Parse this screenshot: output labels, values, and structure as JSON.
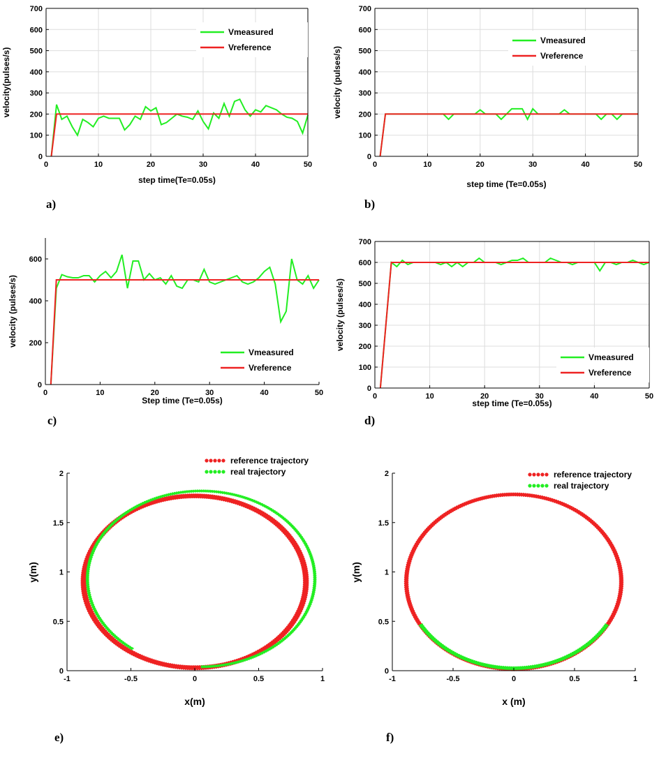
{
  "colors": {
    "measured": "#22ee22",
    "reference": "#ee2222",
    "grid": "#dddddd",
    "axis": "#000000"
  },
  "chart_data": [
    {
      "id": "a",
      "type": "line",
      "panel_label": "a)",
      "xlabel": "step time(Te=0.05s)",
      "ylabel": "velocity(pulses/s)",
      "xlim": [
        0,
        50
      ],
      "ylim": [
        0,
        700
      ],
      "xticks": [
        0,
        10,
        20,
        30,
        40,
        50
      ],
      "yticks": [
        0,
        100,
        200,
        300,
        400,
        500,
        600,
        700
      ],
      "grid": true,
      "legend_position": "top-right",
      "series": [
        {
          "name": "Vmeasured",
          "color": "#22ee22",
          "x": [
            1,
            2,
            3,
            4,
            5,
            6,
            7,
            8,
            9,
            10,
            11,
            12,
            13,
            14,
            15,
            16,
            17,
            18,
            19,
            20,
            21,
            22,
            23,
            24,
            25,
            26,
            27,
            28,
            29,
            30,
            31,
            32,
            33,
            34,
            35,
            36,
            37,
            38,
            39,
            40,
            41,
            42,
            43,
            44,
            45,
            46,
            47,
            48,
            49,
            50
          ],
          "y": [
            0,
            245,
            175,
            190,
            140,
            100,
            175,
            160,
            140,
            180,
            190,
            180,
            180,
            180,
            125,
            150,
            190,
            175,
            235,
            215,
            230,
            150,
            160,
            180,
            200,
            190,
            185,
            175,
            215,
            165,
            130,
            205,
            180,
            250,
            190,
            260,
            270,
            220,
            190,
            220,
            210,
            240,
            230,
            220,
            200,
            185,
            180,
            165,
            110,
            195
          ]
        },
        {
          "name": "Vreference",
          "color": "#ee2222",
          "x": [
            1,
            2,
            3,
            4,
            5,
            6,
            7,
            8,
            9,
            10,
            11,
            12,
            13,
            14,
            15,
            16,
            17,
            18,
            19,
            20,
            21,
            22,
            23,
            24,
            25,
            26,
            27,
            28,
            29,
            30,
            31,
            32,
            33,
            34,
            35,
            36,
            37,
            38,
            39,
            40,
            41,
            42,
            43,
            44,
            45,
            46,
            47,
            48,
            49,
            50
          ],
          "y": [
            0,
            200,
            200,
            200,
            200,
            200,
            200,
            200,
            200,
            200,
            200,
            200,
            200,
            200,
            200,
            200,
            200,
            200,
            200,
            200,
            200,
            200,
            200,
            200,
            200,
            200,
            200,
            200,
            200,
            200,
            200,
            200,
            200,
            200,
            200,
            200,
            200,
            200,
            200,
            200,
            200,
            200,
            200,
            200,
            200,
            200,
            200,
            200,
            200,
            200
          ]
        }
      ]
    },
    {
      "id": "b",
      "type": "line",
      "panel_label": "b)",
      "xlabel": "step time (Te=0.05s)",
      "ylabel": "velocity (pulses/s)",
      "xlim": [
        0,
        50
      ],
      "ylim": [
        0,
        700
      ],
      "xticks": [
        0,
        10,
        20,
        30,
        40,
        50
      ],
      "yticks": [
        0,
        100,
        200,
        300,
        400,
        500,
        600,
        700
      ],
      "grid": true,
      "legend_position": "top-right",
      "series": [
        {
          "name": "Vmeasured",
          "color": "#22ee22",
          "x": [
            1,
            2,
            3,
            4,
            5,
            6,
            7,
            8,
            9,
            10,
            11,
            12,
            13,
            14,
            15,
            16,
            17,
            18,
            19,
            20,
            21,
            22,
            23,
            24,
            25,
            26,
            27,
            28,
            29,
            30,
            31,
            32,
            33,
            34,
            35,
            36,
            37,
            38,
            39,
            40,
            41,
            42,
            43,
            44,
            45,
            46,
            47,
            48,
            49,
            50
          ],
          "y": [
            0,
            200,
            200,
            200,
            200,
            200,
            200,
            200,
            200,
            200,
            200,
            200,
            200,
            175,
            200,
            200,
            200,
            200,
            200,
            220,
            200,
            200,
            200,
            175,
            200,
            225,
            225,
            225,
            175,
            225,
            200,
            200,
            200,
            200,
            200,
            220,
            200,
            200,
            200,
            200,
            200,
            200,
            175,
            200,
            200,
            175,
            200,
            200,
            200,
            200
          ]
        },
        {
          "name": "Vreference",
          "color": "#ee2222",
          "x": [
            1,
            2,
            3,
            4,
            5,
            6,
            7,
            8,
            9,
            10,
            11,
            12,
            13,
            14,
            15,
            16,
            17,
            18,
            19,
            20,
            21,
            22,
            23,
            24,
            25,
            26,
            27,
            28,
            29,
            30,
            31,
            32,
            33,
            34,
            35,
            36,
            37,
            38,
            39,
            40,
            41,
            42,
            43,
            44,
            45,
            46,
            47,
            48,
            49,
            50
          ],
          "y": [
            0,
            200,
            200,
            200,
            200,
            200,
            200,
            200,
            200,
            200,
            200,
            200,
            200,
            200,
            200,
            200,
            200,
            200,
            200,
            200,
            200,
            200,
            200,
            200,
            200,
            200,
            200,
            200,
            200,
            200,
            200,
            200,
            200,
            200,
            200,
            200,
            200,
            200,
            200,
            200,
            200,
            200,
            200,
            200,
            200,
            200,
            200,
            200,
            200,
            200
          ]
        }
      ]
    },
    {
      "id": "c",
      "type": "line",
      "panel_label": "c)",
      "xlabel": "Step time (Te=0.05s)",
      "ylabel": "velocity (pulses/s)",
      "xlim": [
        0,
        50
      ],
      "ylim": [
        0,
        700
      ],
      "xticks": [
        0,
        10,
        20,
        30,
        40,
        50
      ],
      "yticks": [
        0,
        200,
        400,
        600
      ],
      "grid": false,
      "legend_position": "bottom-right",
      "series": [
        {
          "name": "Vmeasured",
          "color": "#22ee22",
          "x": [
            1,
            2,
            3,
            4,
            5,
            6,
            7,
            8,
            9,
            10,
            11,
            12,
            13,
            14,
            15,
            16,
            17,
            18,
            19,
            20,
            21,
            22,
            23,
            24,
            25,
            26,
            27,
            28,
            29,
            30,
            31,
            32,
            33,
            34,
            35,
            36,
            37,
            38,
            39,
            40,
            41,
            42,
            43,
            44,
            45,
            46,
            47,
            48,
            49,
            50
          ],
          "y": [
            0,
            460,
            525,
            515,
            510,
            510,
            520,
            520,
            490,
            520,
            540,
            510,
            540,
            620,
            460,
            590,
            590,
            500,
            530,
            500,
            510,
            480,
            520,
            470,
            460,
            500,
            500,
            490,
            550,
            490,
            480,
            490,
            500,
            510,
            520,
            490,
            480,
            490,
            510,
            540,
            560,
            480,
            300,
            350,
            600,
            500,
            480,
            520,
            460,
            500
          ]
        },
        {
          "name": "Vreference",
          "color": "#ee2222",
          "x": [
            1,
            2,
            3,
            4,
            5,
            6,
            7,
            8,
            9,
            10,
            11,
            12,
            13,
            14,
            15,
            16,
            17,
            18,
            19,
            20,
            21,
            22,
            23,
            24,
            25,
            26,
            27,
            28,
            29,
            30,
            31,
            32,
            33,
            34,
            35,
            36,
            37,
            38,
            39,
            40,
            41,
            42,
            43,
            44,
            45,
            46,
            47,
            48,
            49,
            50
          ],
          "y": [
            0,
            500,
            500,
            500,
            500,
            500,
            500,
            500,
            500,
            500,
            500,
            500,
            500,
            500,
            500,
            500,
            500,
            500,
            500,
            500,
            500,
            500,
            500,
            500,
            500,
            500,
            500,
            500,
            500,
            500,
            500,
            500,
            500,
            500,
            500,
            500,
            500,
            500,
            500,
            500,
            500,
            500,
            500,
            500,
            500,
            500,
            500,
            500,
            500,
            500
          ]
        }
      ]
    },
    {
      "id": "d",
      "type": "line",
      "panel_label": "d)",
      "xlabel": "step time (Te=0.05s)",
      "ylabel": "velocity (pulses/s)",
      "xlim": [
        0,
        50
      ],
      "ylim": [
        0,
        700
      ],
      "xticks": [
        0,
        10,
        20,
        30,
        40,
        50
      ],
      "yticks": [
        0,
        100,
        200,
        300,
        400,
        500,
        600,
        700
      ],
      "grid": true,
      "legend_position": "bottom-right",
      "series": [
        {
          "name": "Vmeasured",
          "color": "#22ee22",
          "x": [
            1,
            2,
            3,
            4,
            5,
            6,
            7,
            8,
            9,
            10,
            11,
            12,
            13,
            14,
            15,
            16,
            17,
            18,
            19,
            20,
            21,
            22,
            23,
            24,
            25,
            26,
            27,
            28,
            29,
            30,
            31,
            32,
            33,
            34,
            35,
            36,
            37,
            38,
            39,
            40,
            41,
            42,
            43,
            44,
            45,
            46,
            47,
            48,
            49,
            50
          ],
          "y": [
            0,
            300,
            600,
            580,
            610,
            590,
            600,
            600,
            600,
            600,
            600,
            590,
            600,
            580,
            600,
            580,
            600,
            600,
            620,
            600,
            600,
            600,
            590,
            600,
            610,
            610,
            620,
            600,
            600,
            600,
            600,
            620,
            610,
            600,
            600,
            590,
            600,
            600,
            600,
            600,
            560,
            600,
            600,
            590,
            600,
            600,
            610,
            600,
            590,
            600
          ]
        },
        {
          "name": "Vreference",
          "color": "#ee2222",
          "x": [
            1,
            2,
            3,
            4,
            5,
            6,
            7,
            8,
            9,
            10,
            11,
            12,
            13,
            14,
            15,
            16,
            17,
            18,
            19,
            20,
            21,
            22,
            23,
            24,
            25,
            26,
            27,
            28,
            29,
            30,
            31,
            32,
            33,
            34,
            35,
            36,
            37,
            38,
            39,
            40,
            41,
            42,
            43,
            44,
            45,
            46,
            47,
            48,
            49,
            50
          ],
          "y": [
            0,
            300,
            600,
            600,
            600,
            600,
            600,
            600,
            600,
            600,
            600,
            600,
            600,
            600,
            600,
            600,
            600,
            600,
            600,
            600,
            600,
            600,
            600,
            600,
            600,
            600,
            600,
            600,
            600,
            600,
            600,
            600,
            600,
            600,
            600,
            600,
            600,
            600,
            600,
            600,
            600,
            600,
            600,
            600,
            600,
            600,
            600,
            600,
            600,
            600
          ]
        }
      ]
    },
    {
      "id": "e",
      "type": "scatter",
      "panel_label": "e)",
      "xlabel": "x(m)",
      "ylabel": "y(m)",
      "xlim": [
        -1,
        1
      ],
      "ylim": [
        0,
        2
      ],
      "xticks": [
        -1,
        -0.5,
        0,
        0.5,
        1
      ],
      "yticks": [
        0,
        0.5,
        1,
        1.5,
        2
      ],
      "xticklabels": [
        "-1",
        "-0.5",
        "0",
        "0.5",
        "1"
      ],
      "yticklabels": [
        "0",
        "0.5",
        "1",
        "1.5",
        "2"
      ],
      "grid": false,
      "legend_position": "top-right",
      "series": [
        {
          "name": "reference trajectory",
          "color": "#ee2222",
          "shape": "circle",
          "center": [
            0,
            0.9
          ],
          "radius": [
            0.85,
            0.89
          ],
          "theta_range_deg": [
            -90,
            270
          ]
        },
        {
          "name": "real  trajectory",
          "color": "#22ee22",
          "shape": "circle",
          "center": [
            0.05,
            0.93
          ],
          "radius": [
            0.88,
            0.9
          ],
          "theta_range_deg": [
            -90,
            233
          ]
        }
      ]
    },
    {
      "id": "f",
      "type": "scatter",
      "panel_label": "f)",
      "xlabel": "x (m)",
      "ylabel": "y(m)",
      "xlim": [
        -1,
        1
      ],
      "ylim": [
        0,
        2
      ],
      "xticks": [
        -1,
        -0.5,
        0,
        0.5,
        1
      ],
      "yticks": [
        0,
        0.5,
        1,
        1.5,
        2
      ],
      "xticklabels": [
        "-1",
        "-0.5",
        "0",
        "0.5",
        "1"
      ],
      "yticklabels": [
        "0",
        "0.5",
        "1",
        "1.5",
        "2"
      ],
      "grid": false,
      "legend_position": "top-right",
      "series": [
        {
          "name": "reference trajectory",
          "color": "#ee2222",
          "shape": "circle",
          "center": [
            0,
            0.9
          ],
          "radius": [
            0.87,
            0.9
          ],
          "theta_range_deg": [
            -90,
            270
          ]
        },
        {
          "name": "real  trajectory",
          "color": "#22ee22",
          "shape": "circle",
          "center": [
            0,
            0.91
          ],
          "radius": [
            0.87,
            0.9
          ],
          "theta_range_deg": [
            -90,
            270
          ],
          "visible_arcs_deg": [
            [
              -150,
              -30
            ]
          ]
        }
      ]
    }
  ]
}
